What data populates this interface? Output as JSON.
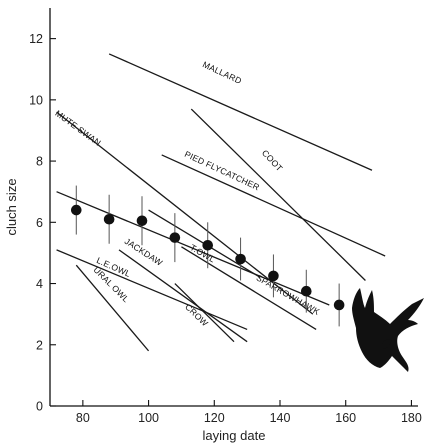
{
  "chart_data": {
    "type": "line",
    "xlabel": "laying date",
    "ylabel": "cluch size",
    "xlim": [
      70,
      182
    ],
    "ylim": [
      0,
      13
    ],
    "x_ticks": [
      80,
      100,
      120,
      140,
      160,
      180
    ],
    "y_ticks": [
      0,
      2,
      4,
      6,
      8,
      10,
      12
    ],
    "series": [
      {
        "name": "MALLARD",
        "x": [
          88,
          168
        ],
        "y": [
          11.5,
          7.7
        ]
      },
      {
        "name": "COOT",
        "x": [
          113,
          166
        ],
        "y": [
          9.7,
          4.1
        ]
      },
      {
        "name": "PIED FLYCATCHER",
        "x": [
          104,
          172
        ],
        "y": [
          8.2,
          4.9
        ]
      },
      {
        "name": "MUTE SWAN",
        "x": [
          72,
          150
        ],
        "y": [
          9.6,
          3.0
        ]
      },
      {
        "name": "T.OWL",
        "x": [
          100,
          134
        ],
        "y": [
          6.4,
          4.2
        ]
      },
      {
        "name": "SPARROWHAWK",
        "x": [
          110,
          151
        ],
        "y": [
          5.2,
          2.5
        ]
      },
      {
        "name": "JACKDAW",
        "x": [
          91,
          130
        ],
        "y": [
          5.1,
          2.1
        ]
      },
      {
        "name": "CROW",
        "x": [
          108,
          126
        ],
        "y": [
          4.0,
          2.1
        ]
      },
      {
        "name": "L.E.OWL",
        "x": [
          72,
          130
        ],
        "y": [
          5.1,
          2.5
        ]
      },
      {
        "name": "URAL OWL",
        "x": [
          78,
          100
        ],
        "y": [
          4.6,
          1.8
        ]
      },
      {
        "name": "",
        "x": [
          72,
          155
        ],
        "y": [
          7.0,
          3.3
        ]
      }
    ],
    "points": [
      {
        "x": 78,
        "y": 6.4,
        "err": 0.8
      },
      {
        "x": 88,
        "y": 6.1,
        "err": 0.8
      },
      {
        "x": 98,
        "y": 6.05,
        "err": 0.8
      },
      {
        "x": 108,
        "y": 5.5,
        "err": 0.8
      },
      {
        "x": 118,
        "y": 5.25,
        "err": 0.75
      },
      {
        "x": 128,
        "y": 4.8,
        "err": 0.7
      },
      {
        "x": 138,
        "y": 4.25,
        "err": 0.7
      },
      {
        "x": 148,
        "y": 3.75,
        "err": 0.7
      },
      {
        "x": 158,
        "y": 3.3,
        "err": 0.7
      }
    ],
    "labels": [
      {
        "text": "MALLARD",
        "x": 122,
        "y": 10.8,
        "angle": 25
      },
      {
        "text": "COOT",
        "x": 137,
        "y": 7.95,
        "angle": 47
      },
      {
        "text": "PIED FLYCATCHER",
        "x": 122,
        "y": 7.6,
        "angle": 25
      },
      {
        "text": "MUTE SWAN",
        "x": 78,
        "y": 9.0,
        "angle": 36
      },
      {
        "text": "T.OWL",
        "x": 116,
        "y": 4.9,
        "angle": 30
      },
      {
        "text": "SPARROWHAWK",
        "x": 142,
        "y": 3.55,
        "angle": 30
      },
      {
        "text": "JACKDAW",
        "x": 98,
        "y": 4.95,
        "angle": 33
      },
      {
        "text": "CROW",
        "x": 114,
        "y": 2.9,
        "angle": 44
      },
      {
        "text": "L.E.OWL",
        "x": 89,
        "y": 4.45,
        "angle": 24
      },
      {
        "text": "URAL OWL",
        "x": 88,
        "y": 3.9,
        "angle": 45
      }
    ],
    "grid": false,
    "legend": "none"
  }
}
